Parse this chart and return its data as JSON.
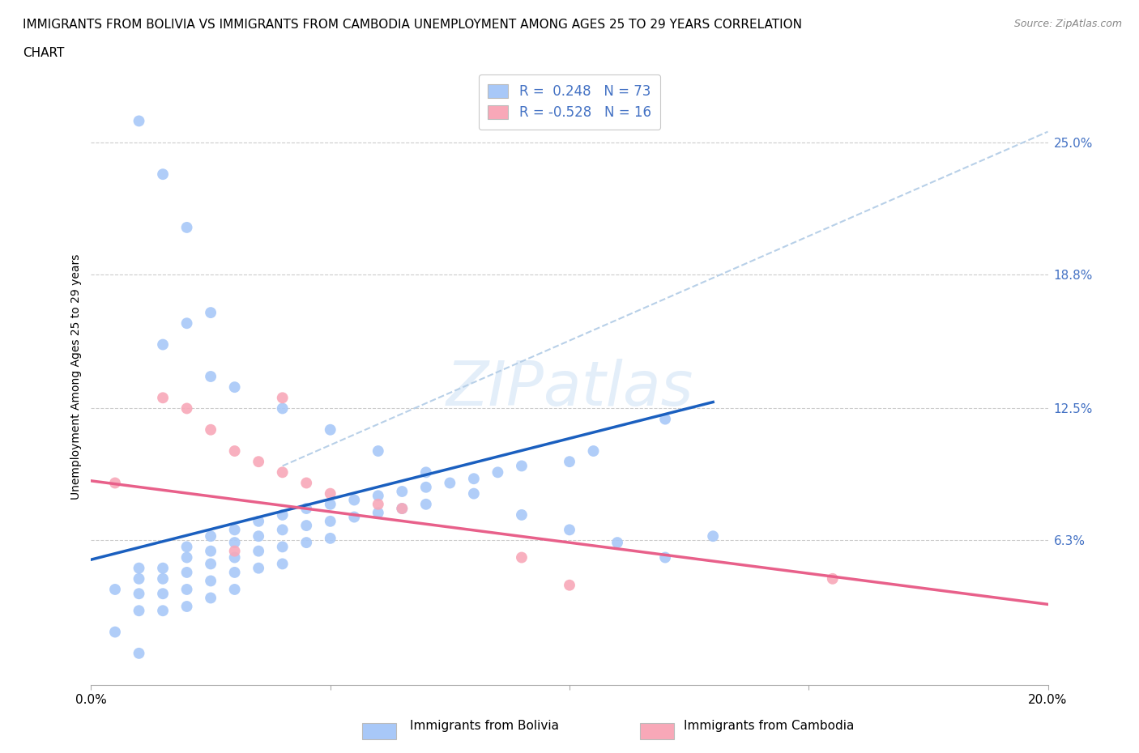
{
  "title_line1": "IMMIGRANTS FROM BOLIVIA VS IMMIGRANTS FROM CAMBODIA UNEMPLOYMENT AMONG AGES 25 TO 29 YEARS CORRELATION",
  "title_line2": "CHART",
  "source": "Source: ZipAtlas.com",
  "ylabel": "Unemployment Among Ages 25 to 29 years",
  "xlim": [
    0.0,
    0.2
  ],
  "ylim": [
    -0.005,
    0.285
  ],
  "yticks": [
    0.0,
    0.063,
    0.125,
    0.188,
    0.25
  ],
  "ytick_labels": [
    "",
    "6.3%",
    "12.5%",
    "18.8%",
    "25.0%"
  ],
  "xticks": [
    0.0,
    0.05,
    0.1,
    0.15,
    0.2
  ],
  "xtick_labels": [
    "0.0%",
    "",
    "",
    "",
    "20.0%"
  ],
  "watermark": "ZIPatlas",
  "legend_r1": "R =  0.248   N = 73",
  "legend_r2": "R = -0.528   N = 16",
  "bolivia_color": "#a8c8f8",
  "cambodia_color": "#f8a8b8",
  "bolivia_line_color": "#1a5fbf",
  "cambodia_line_color": "#e8608a",
  "dashed_line_color": "#b8d0e8",
  "bolivia_scatter_x": [
    0.005,
    0.01,
    0.01,
    0.01,
    0.01,
    0.015,
    0.015,
    0.015,
    0.015,
    0.02,
    0.02,
    0.02,
    0.02,
    0.02,
    0.025,
    0.025,
    0.025,
    0.025,
    0.025,
    0.03,
    0.03,
    0.03,
    0.03,
    0.03,
    0.035,
    0.035,
    0.035,
    0.035,
    0.04,
    0.04,
    0.04,
    0.04,
    0.045,
    0.045,
    0.045,
    0.05,
    0.05,
    0.05,
    0.055,
    0.055,
    0.06,
    0.06,
    0.065,
    0.065,
    0.07,
    0.07,
    0.075,
    0.08,
    0.085,
    0.09,
    0.1,
    0.105,
    0.12,
    0.015,
    0.02,
    0.025,
    0.13,
    0.01,
    0.015,
    0.02,
    0.025,
    0.03,
    0.04,
    0.05,
    0.06,
    0.07,
    0.08,
    0.09,
    0.1,
    0.11,
    0.12,
    0.005,
    0.01
  ],
  "bolivia_scatter_y": [
    0.04,
    0.05,
    0.045,
    0.038,
    0.03,
    0.05,
    0.045,
    0.038,
    0.03,
    0.06,
    0.055,
    0.048,
    0.04,
    0.032,
    0.065,
    0.058,
    0.052,
    0.044,
    0.036,
    0.068,
    0.062,
    0.055,
    0.048,
    0.04,
    0.072,
    0.065,
    0.058,
    0.05,
    0.075,
    0.068,
    0.06,
    0.052,
    0.078,
    0.07,
    0.062,
    0.08,
    0.072,
    0.064,
    0.082,
    0.074,
    0.084,
    0.076,
    0.086,
    0.078,
    0.088,
    0.08,
    0.09,
    0.092,
    0.095,
    0.098,
    0.1,
    0.105,
    0.12,
    0.155,
    0.165,
    0.14,
    0.065,
    0.26,
    0.235,
    0.21,
    0.17,
    0.135,
    0.125,
    0.115,
    0.105,
    0.095,
    0.085,
    0.075,
    0.068,
    0.062,
    0.055,
    0.02,
    0.01
  ],
  "cambodia_scatter_x": [
    0.005,
    0.015,
    0.02,
    0.025,
    0.03,
    0.035,
    0.04,
    0.045,
    0.05,
    0.06,
    0.065,
    0.09,
    0.1,
    0.155,
    0.03,
    0.04
  ],
  "cambodia_scatter_y": [
    0.09,
    0.13,
    0.125,
    0.115,
    0.105,
    0.1,
    0.095,
    0.09,
    0.085,
    0.08,
    0.078,
    0.055,
    0.042,
    0.045,
    0.058,
    0.13
  ],
  "bolivia_trend_x": [
    0.0,
    0.13
  ],
  "bolivia_trend_y": [
    0.054,
    0.128
  ],
  "cambodia_trend_x": [
    0.0,
    0.2
  ],
  "cambodia_trend_y": [
    0.091,
    0.033
  ],
  "dashed_trend_x": [
    0.04,
    0.2
  ],
  "dashed_trend_y": [
    0.098,
    0.255
  ]
}
